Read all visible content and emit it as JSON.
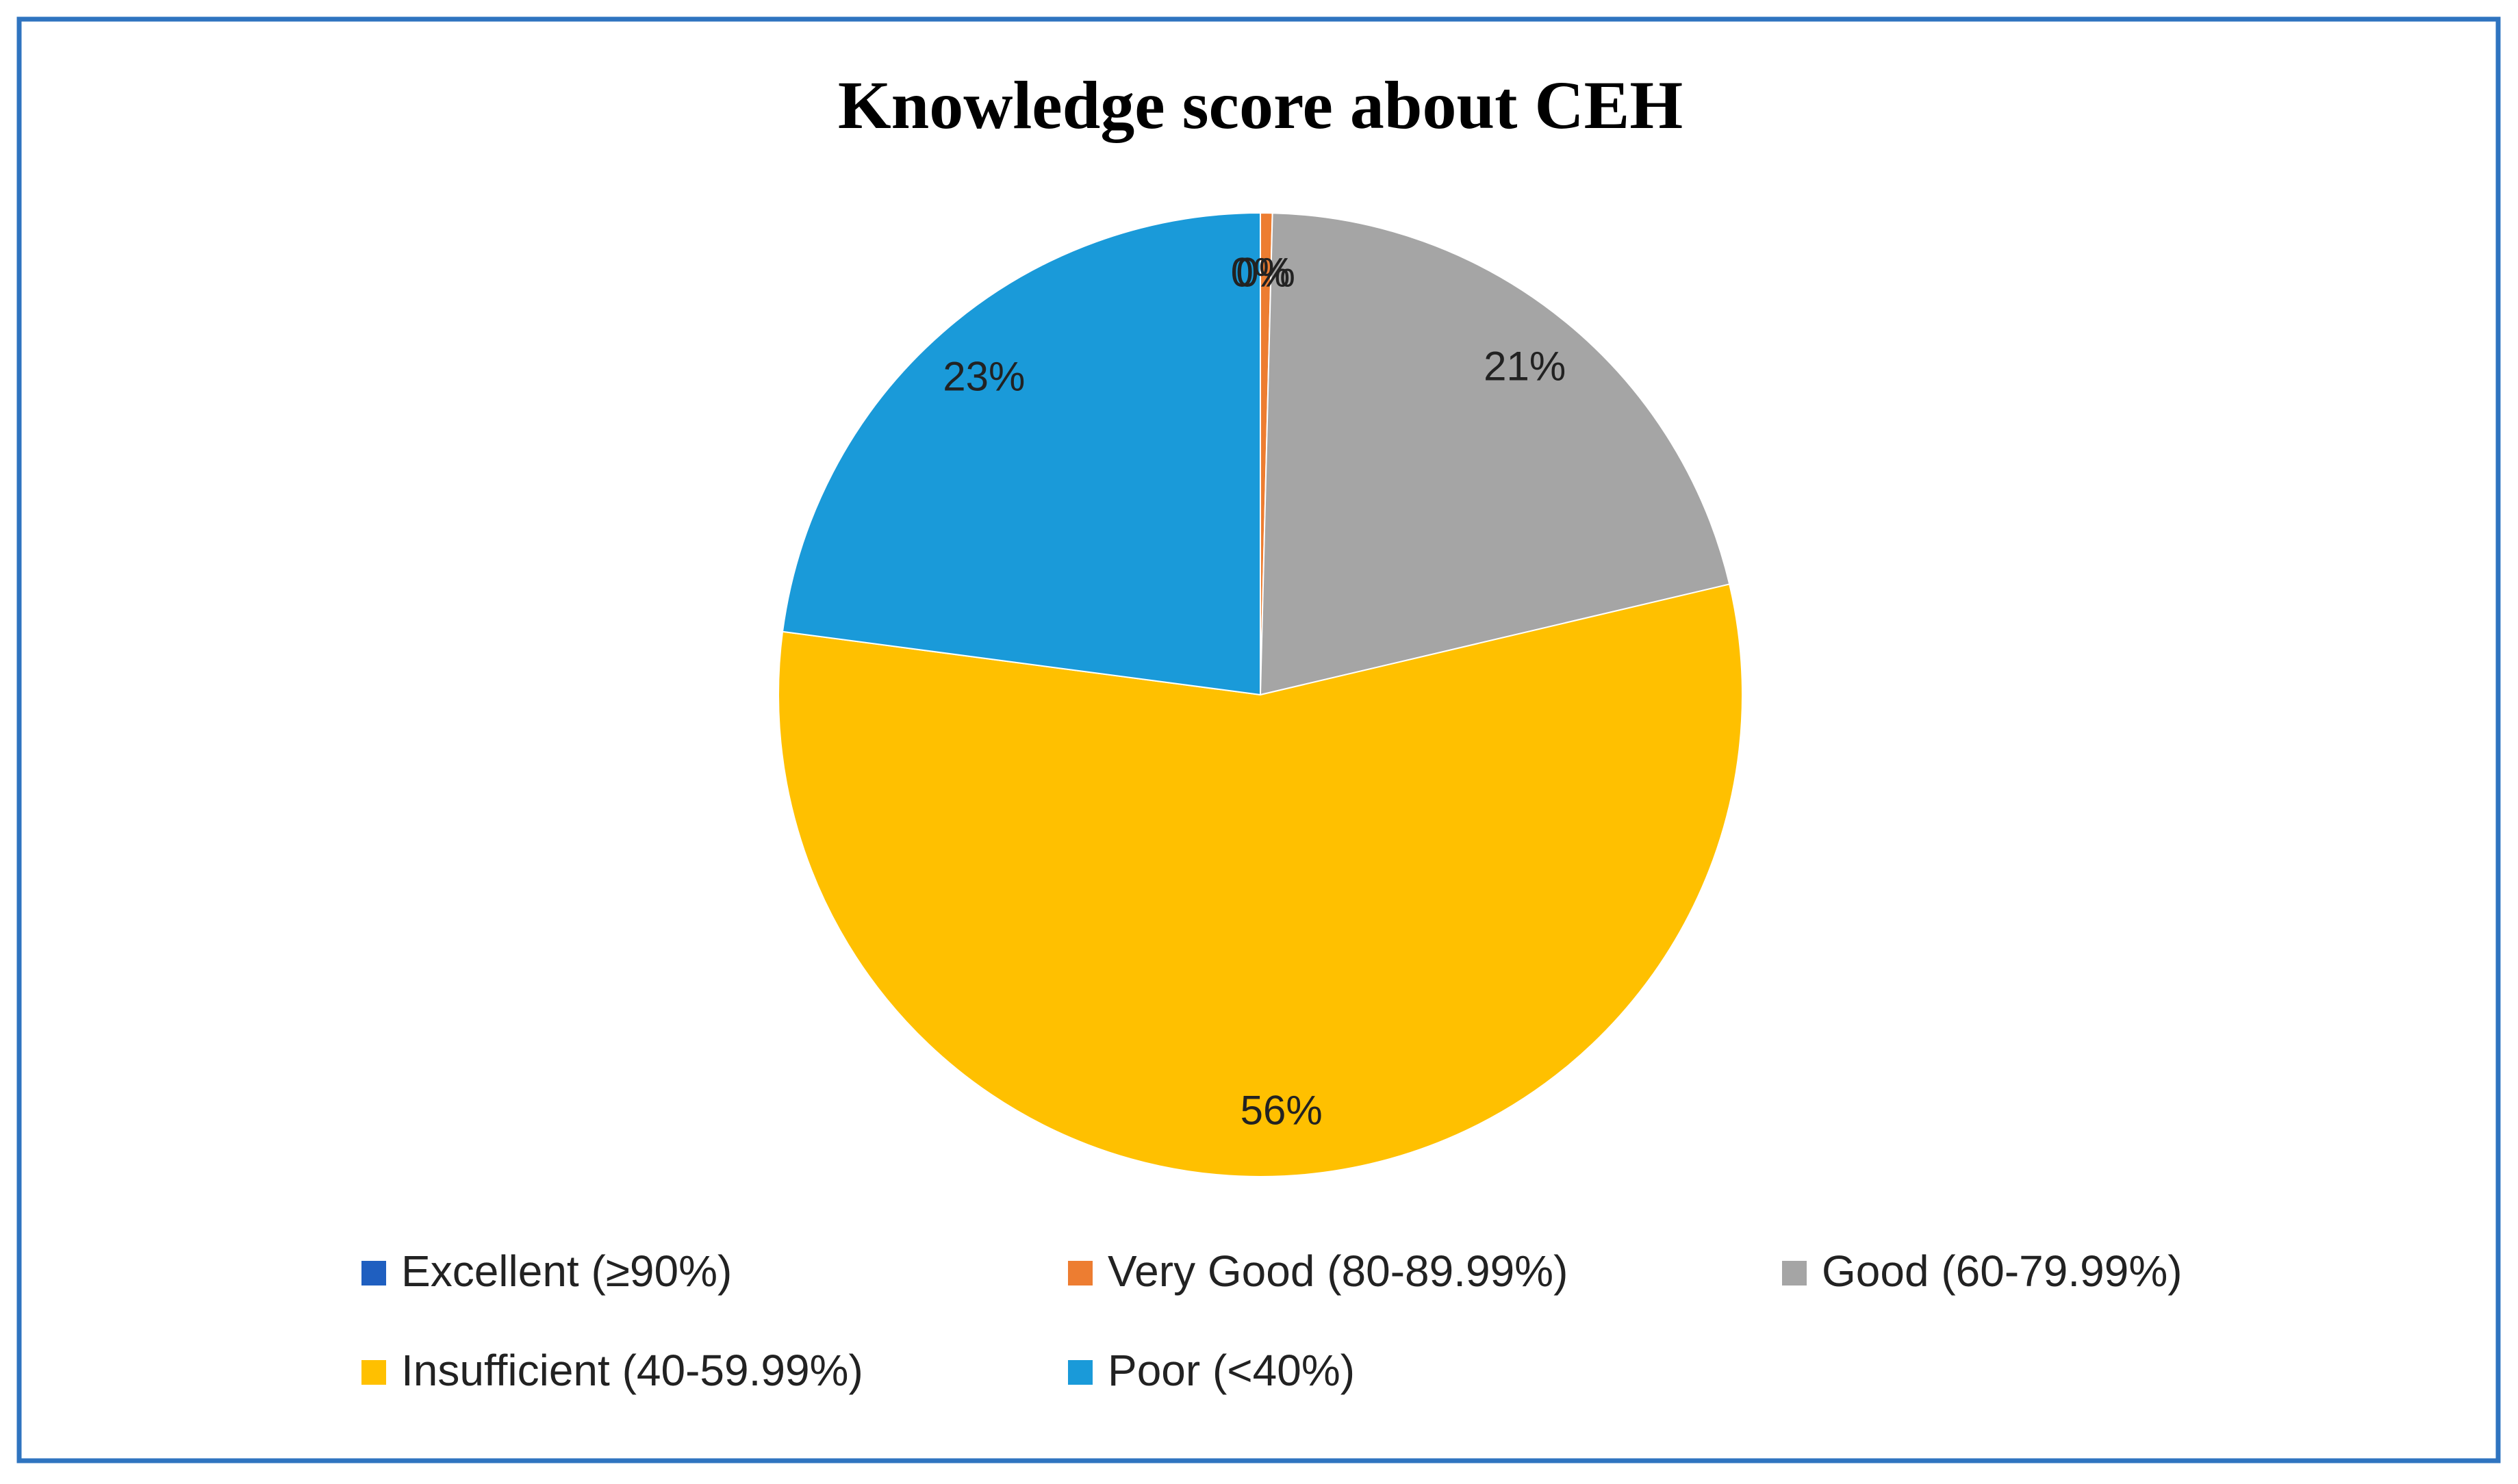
{
  "chart_data": {
    "type": "pie",
    "title": "Knowledge score about CEH",
    "categories": [
      "Excellent (≥90%)",
      "Very Good (80-89.99%)",
      "Good (60-79.99%)",
      "Insufficient (40-59.99%)",
      "Poor (<40%)"
    ],
    "values": [
      0,
      0.4,
      21,
      56,
      23
    ],
    "value_labels": [
      "0%",
      "0%",
      "21%",
      "56%",
      "23%"
    ],
    "colors": [
      "#1f5fc0",
      "#ed7d31",
      "#a5a5a5",
      "#ffc000",
      "#1a9ad9"
    ]
  }
}
